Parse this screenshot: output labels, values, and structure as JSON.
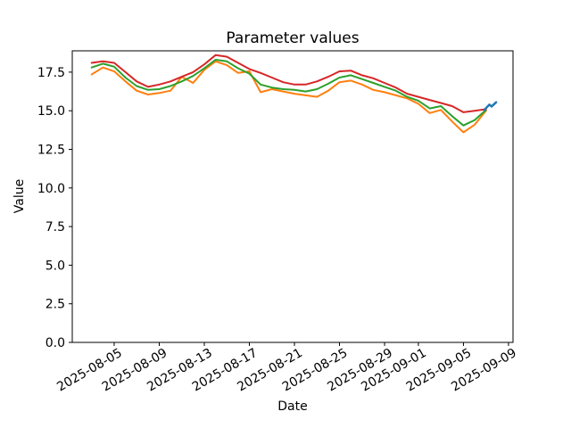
{
  "window": {
    "background": "#ffffff"
  },
  "chart_data": {
    "type": "line",
    "title": "Parameter values",
    "xlabel": "Date",
    "ylabel": "Value",
    "grid": false,
    "legend": "none",
    "x_start_date": "2025-08-03",
    "x_unit": "days since 2025-08-03",
    "xlim_days": [
      -1.72,
      37.4
    ],
    "ylim": [
      0,
      18.88
    ],
    "y_ticks": [
      {
        "value": 0,
        "label": "0.0"
      },
      {
        "value": 2.5,
        "label": "2.5"
      },
      {
        "value": 5,
        "label": "5.0"
      },
      {
        "value": 7.5,
        "label": "7.5"
      },
      {
        "value": 10,
        "label": "10.0"
      },
      {
        "value": 12.5,
        "label": "12.5"
      },
      {
        "value": 15,
        "label": "15.0"
      },
      {
        "value": 17.5,
        "label": "17.5"
      }
    ],
    "x_ticks": [
      {
        "day": 2,
        "label": "2025-08-05"
      },
      {
        "day": 6,
        "label": "2025-08-09"
      },
      {
        "day": 10,
        "label": "2025-08-13"
      },
      {
        "day": 14,
        "label": "2025-08-17"
      },
      {
        "day": 18,
        "label": "2025-08-21"
      },
      {
        "day": 22,
        "label": "2025-08-25"
      },
      {
        "day": 26,
        "label": "2025-08-29"
      },
      {
        "day": 29,
        "label": "2025-09-01"
      },
      {
        "day": 33,
        "label": "2025-09-05"
      },
      {
        "day": 37,
        "label": "2025-09-09"
      }
    ],
    "series": [
      {
        "name": "orange-line",
        "color": "#ff7f0e",
        "width": 2,
        "values": [
          17.35,
          17.8,
          17.55,
          16.9,
          16.3,
          16.05,
          16.15,
          16.3,
          17.2,
          16.8,
          17.65,
          18.2,
          17.95,
          17.45,
          17.55,
          16.2,
          16.4,
          16.25,
          16.1,
          16.0,
          15.9,
          16.3,
          16.85,
          16.95,
          16.7,
          16.35,
          16.2,
          16.0,
          15.8,
          15.45,
          14.85,
          15.05,
          14.3,
          13.6,
          14.1,
          15.0
        ]
      },
      {
        "name": "green-line",
        "color": "#2ca02c",
        "width": 2,
        "values": [
          17.8,
          18.05,
          17.85,
          17.15,
          16.6,
          16.35,
          16.4,
          16.6,
          16.9,
          17.25,
          17.75,
          18.3,
          18.2,
          17.75,
          17.4,
          16.7,
          16.5,
          16.4,
          16.35,
          16.25,
          16.4,
          16.75,
          17.15,
          17.3,
          17.05,
          16.8,
          16.55,
          16.3,
          15.9,
          15.65,
          15.15,
          15.3,
          14.65,
          14.05,
          14.4,
          15.05
        ]
      },
      {
        "name": "red-line",
        "color": "#d62728",
        "width": 2,
        "values": [
          18.1,
          18.2,
          18.1,
          17.5,
          16.9,
          16.55,
          16.7,
          16.9,
          17.2,
          17.5,
          18.0,
          18.6,
          18.5,
          18.1,
          17.7,
          17.45,
          17.15,
          16.85,
          16.7,
          16.7,
          16.9,
          17.2,
          17.55,
          17.6,
          17.3,
          17.1,
          16.8,
          16.5,
          16.1,
          15.9,
          15.7,
          15.5,
          15.3,
          14.9,
          15.0,
          15.1
        ]
      },
      {
        "name": "blue-line",
        "color": "#1f77b4",
        "width": 2.5,
        "x_days": [
          34.85,
          35.3,
          35.5,
          35.9
        ],
        "values": [
          15.05,
          15.4,
          15.28,
          15.55
        ]
      }
    ]
  }
}
